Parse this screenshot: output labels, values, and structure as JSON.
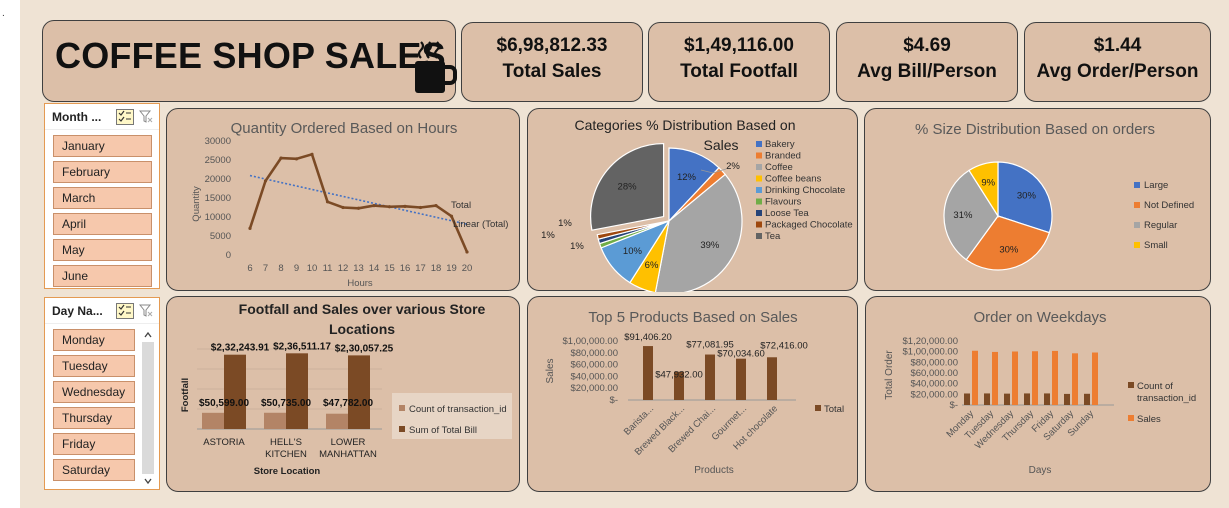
{
  "title": "COFFEE SHOP SALES",
  "kpis": [
    {
      "value": "$6,98,812.33",
      "label": "Total Sales"
    },
    {
      "value": "$1,49,116.00",
      "label": "Total Footfall"
    },
    {
      "value": "$4.69",
      "label": "Avg Bill/Person"
    },
    {
      "value": "$1.44",
      "label": "Avg Order/Person"
    }
  ],
  "month_slicer": {
    "header": "Month ...",
    "items": [
      "January",
      "February",
      "March",
      "April",
      "May",
      "June"
    ]
  },
  "day_slicer": {
    "header": "Day Na...",
    "items": [
      "Monday",
      "Tuesday",
      "Wednesday",
      "Thursday",
      "Friday",
      "Saturday"
    ]
  },
  "colors": {
    "line": "#7b4a25",
    "trend": "#4472c4",
    "bar": "#7b4a25",
    "bar_light": "#b38466",
    "orange": "#ed7d31"
  },
  "chart_data": [
    {
      "type": "line",
      "title": "Quantity Ordered Based on Hours",
      "xlabel": "Hours",
      "ylabel": "Quantity",
      "x": [
        6,
        7,
        8,
        9,
        10,
        11,
        12,
        13,
        14,
        15,
        16,
        17,
        18,
        19,
        20
      ],
      "series": [
        {
          "name": "Total",
          "values": [
            7000,
            19500,
            25500,
            25300,
            26500,
            14000,
            12500,
            12300,
            13000,
            12700,
            12800,
            12500,
            13000,
            10200,
            800
          ]
        }
      ],
      "trendline": "Linear (Total)",
      "ylim": [
        0,
        30000
      ],
      "yticks": [
        "0",
        "5000",
        "10000",
        "15000",
        "20000",
        "25000",
        "30000"
      ]
    },
    {
      "type": "pie",
      "title": "Categories % Distribution Based on Sales",
      "legend_position": "right",
      "slices": [
        {
          "name": "Bakery",
          "value": 12,
          "label": "12%",
          "color": "#4472c4"
        },
        {
          "name": "Branded",
          "value": 2,
          "label": "2%",
          "color": "#ed7d31"
        },
        {
          "name": "Coffee",
          "value": 39,
          "label": "39%",
          "color": "#a5a5a5"
        },
        {
          "name": "Coffee beans",
          "value": 6,
          "label": "6%",
          "color": "#ffc000"
        },
        {
          "name": "Drinking Chocolate",
          "value": 10,
          "label": "10%",
          "color": "#5b9bd5"
        },
        {
          "name": "Flavours",
          "value": 1,
          "label": "1%",
          "color": "#70ad47"
        },
        {
          "name": "Loose Tea",
          "value": 1,
          "label": "1%",
          "color": "#264478"
        },
        {
          "name": "Packaged Chocolate",
          "value": 1,
          "label": "1%",
          "color": "#9e480e"
        },
        {
          "name": "Tea",
          "value": 28,
          "label": "28%",
          "color": "#636363"
        }
      ]
    },
    {
      "type": "pie",
      "title": "% Size Distribution Based on orders",
      "legend_position": "right",
      "slices": [
        {
          "name": "Large",
          "value": 30,
          "label": "30%",
          "color": "#4472c4"
        },
        {
          "name": "Not Defined",
          "value": 30,
          "label": "30%",
          "color": "#ed7d31"
        },
        {
          "name": "Regular",
          "value": 31,
          "label": "31%",
          "color": "#a5a5a5"
        },
        {
          "name": "Small",
          "value": 9,
          "label": "9%",
          "color": "#ffc000"
        }
      ]
    },
    {
      "type": "bar",
      "title": "Footfall and Sales over various Store Locations",
      "xlabel": "Store Location",
      "ylabel": "Footfall",
      "categories": [
        "ASTORIA",
        "HELL'S KITCHEN",
        "LOWER MANHATTAN"
      ],
      "series": [
        {
          "name": "Count of transaction_id",
          "values": [
            50599,
            50735,
            47782
          ],
          "labels": [
            "$50,599.00",
            "$50,735.00",
            "$47,782.00"
          ]
        },
        {
          "name": "Sum of Total Bill",
          "values": [
            232243.91,
            236511.17,
            230057.25
          ],
          "labels": [
            "$2,32,243.91",
            "$2,36,511.17",
            "$2,30,057.25"
          ]
        }
      ],
      "ylim": [
        0,
        250000
      ]
    },
    {
      "type": "bar",
      "title": "Top 5 Products Based on Sales",
      "xlabel": "Products",
      "ylabel": "Sales",
      "categories": [
        "Barista...",
        "Brewed Black...",
        "Brewed Chai...",
        "Gourmet...",
        "Hot chocolate"
      ],
      "series": [
        {
          "name": "Total",
          "values": [
            91406.2,
            47932,
            77081.95,
            70034.6,
            72416
          ],
          "labels": [
            "$91,406.20",
            "$47,932.00",
            "$77,081.95",
            "$70,034.60",
            "$72,416.00"
          ]
        }
      ],
      "ylim": [
        0,
        100000
      ],
      "yticks": [
        "$-",
        "$20,000.00",
        "$40,000.00",
        "$60,000.00",
        "$80,000.00",
        "$1,00,000.00"
      ]
    },
    {
      "type": "bar",
      "title": "Order on Weekdays",
      "xlabel": "Days",
      "ylabel": "Total Order",
      "categories": [
        "Monday",
        "Tuesday",
        "Wednesday",
        "Thursday",
        "Friday",
        "Saturday",
        "Sunday"
      ],
      "series": [
        {
          "name": "Count of transaction_id",
          "values": [
            21600,
            21700,
            21300,
            21700,
            21700,
            20800,
            21000
          ]
        },
        {
          "name": "Sales",
          "values": [
            101700,
            99500,
            100300,
            100800,
            101400,
            96900,
            98400
          ]
        }
      ],
      "ylim": [
        0,
        120000
      ],
      "yticks": [
        "$-",
        "$20,000.00",
        "$40,000.00",
        "$60,000.00",
        "$80,000.00",
        "$1,00,000.00",
        "$1,20,000.00"
      ]
    }
  ]
}
